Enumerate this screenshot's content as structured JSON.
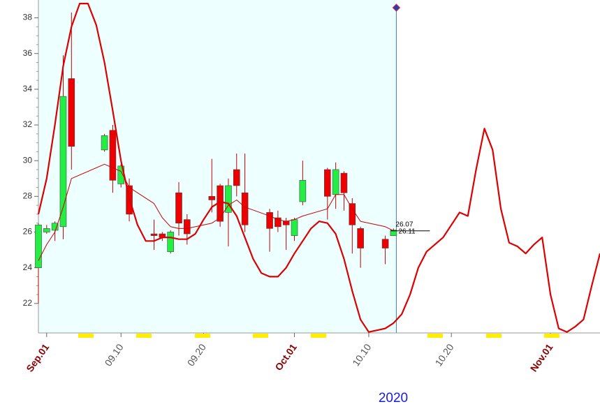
{
  "chart_data": {
    "type": "candlestick",
    "x_label": "2020",
    "xlim": [
      "2020-08-31",
      "2020-11-07"
    ],
    "ylim": [
      20.35,
      39.0
    ],
    "yticks": [
      22,
      24,
      26,
      28,
      30,
      32,
      34,
      36,
      38
    ],
    "xticks": [
      {
        "value": "2020-09-01",
        "label": "Sep.01"
      },
      {
        "value": "2020-09-10",
        "label": "09.10"
      },
      {
        "value": "2020-09-20",
        "label": "09.20"
      },
      {
        "value": "2020-10-01",
        "label": "Oct.01"
      },
      {
        "value": "2020-10-10",
        "label": "10.10"
      },
      {
        "value": "2020-10-20",
        "label": "10.20"
      },
      {
        "value": "2020-11-01",
        "label": "Nov.01"
      }
    ],
    "up_color": "#22ee44",
    "down_color": "#ee0000",
    "candles": {
      "x": [
        "2020-08-31",
        "2020-09-01",
        "2020-09-02",
        "2020-09-03",
        "2020-09-04",
        "2020-09-08",
        "2020-09-09",
        "2020-09-10",
        "2020-09-11",
        "2020-09-14",
        "2020-09-15",
        "2020-09-16",
        "2020-09-17",
        "2020-09-18",
        "2020-09-21",
        "2020-09-22",
        "2020-09-23",
        "2020-09-24",
        "2020-09-25",
        "2020-09-28",
        "2020-09-29",
        "2020-09-30",
        "2020-10-01",
        "2020-10-02",
        "2020-10-05",
        "2020-10-06",
        "2020-10-07",
        "2020-10-08",
        "2020-10-09",
        "2020-10-12",
        "2020-10-13"
      ],
      "open": [
        24.0,
        26.0,
        26.1,
        26.3,
        34.6,
        30.6,
        31.7,
        28.7,
        28.6,
        25.9,
        25.9,
        24.9,
        28.2,
        26.7,
        28.0,
        28.6,
        27.1,
        29.5,
        28.2,
        27.1,
        26.8,
        26.6,
        25.8,
        27.7,
        29.5,
        28.1,
        29.3,
        27.6,
        26.2,
        25.6,
        25.8
      ],
      "high": [
        26.5,
        26.4,
        26.6,
        35.9,
        38.3,
        31.5,
        32.0,
        29.8,
        29.0,
        26.7,
        26.0,
        26.1,
        28.8,
        27.0,
        30.1,
        28.7,
        29.0,
        30.4,
        30.4,
        27.3,
        27.2,
        26.8,
        26.8,
        30.0,
        29.6,
        29.9,
        29.4,
        27.9,
        26.3,
        25.8,
        26.2
      ],
      "low": [
        22.0,
        25.9,
        25.5,
        25.6,
        29.5,
        30.5,
        28.2,
        28.5,
        26.6,
        25.0,
        25.5,
        24.8,
        25.8,
        25.3,
        27.1,
        26.3,
        25.2,
        28.0,
        26.0,
        24.9,
        26.0,
        25.0,
        25.5,
        27.5,
        26.7,
        27.3,
        27.2,
        24.8,
        24.0,
        24.2,
        25.8
      ],
      "close": [
        26.4,
        26.2,
        26.5,
        33.6,
        30.8,
        31.4,
        28.9,
        29.7,
        27.0,
        25.8,
        25.7,
        26.0,
        26.5,
        25.9,
        27.8,
        26.6,
        28.6,
        28.6,
        26.4,
        26.2,
        26.3,
        26.4,
        26.7,
        28.9,
        28.0,
        29.5,
        28.2,
        26.4,
        25.1,
        25.1,
        26.11
      ]
    },
    "series": [
      {
        "color": "#cc0000",
        "x": [
          "2020-08-31",
          "2020-09-01",
          "2020-09-02",
          "2020-09-03",
          "2020-09-04",
          "2020-09-08",
          "2020-09-09",
          "2020-09-10",
          "2020-09-11",
          "2020-09-14",
          "2020-09-15",
          "2020-09-16",
          "2020-09-17",
          "2020-09-18",
          "2020-09-21",
          "2020-09-22",
          "2020-09-23",
          "2020-09-24",
          "2020-09-25",
          "2020-09-28",
          "2020-09-29",
          "2020-09-30",
          "2020-10-01",
          "2020-10-02",
          "2020-10-05",
          "2020-10-06",
          "2020-10-07",
          "2020-10-08",
          "2020-10-09",
          "2020-10-12",
          "2020-10-13"
        ],
        "values": [
          24.4,
          25.3,
          26.0,
          27.4,
          29.0,
          29.8,
          29.6,
          29.4,
          28.5,
          27.6,
          26.8,
          26.3,
          26.2,
          26.2,
          26.5,
          26.8,
          27.5,
          27.8,
          27.4,
          26.9,
          26.7,
          26.6,
          26.7,
          26.9,
          27.3,
          28.1,
          28.1,
          27.3,
          26.6,
          26.3,
          26.07
        ]
      },
      {
        "color": "#dd0000",
        "x": [
          "2020-08-31",
          "2020-09-01",
          "2020-09-02",
          "2020-09-03",
          "2020-09-04",
          "2020-09-05",
          "2020-09-06",
          "2020-09-07",
          "2020-09-08",
          "2020-09-09",
          "2020-09-10",
          "2020-09-11",
          "2020-09-12",
          "2020-09-13",
          "2020-09-14",
          "2020-09-15",
          "2020-09-16",
          "2020-09-17",
          "2020-09-18",
          "2020-09-19",
          "2020-09-20",
          "2020-09-21",
          "2020-09-22",
          "2020-09-23",
          "2020-09-24",
          "2020-09-25",
          "2020-09-26",
          "2020-09-27",
          "2020-09-28",
          "2020-09-29",
          "2020-09-30",
          "2020-10-01",
          "2020-10-02",
          "2020-10-03",
          "2020-10-04",
          "2020-10-05",
          "2020-10-06",
          "2020-10-07",
          "2020-10-08",
          "2020-10-09",
          "2020-10-10",
          "2020-10-11",
          "2020-10-12",
          "2020-10-13",
          "2020-10-14",
          "2020-10-15",
          "2020-10-16",
          "2020-10-17",
          "2020-10-18",
          "2020-10-19",
          "2020-10-20",
          "2020-10-21",
          "2020-10-22",
          "2020-10-23",
          "2020-10-24",
          "2020-10-25",
          "2020-10-26",
          "2020-10-27",
          "2020-10-28",
          "2020-10-29",
          "2020-10-30",
          "2020-10-31",
          "2020-11-01",
          "2020-11-02",
          "2020-11-03",
          "2020-11-04",
          "2020-11-05",
          "2020-11-06",
          "2020-11-07"
        ],
        "values": [
          27.0,
          29.0,
          32.0,
          35.3,
          37.5,
          38.8,
          38.8,
          37.6,
          35.5,
          32.8,
          30.0,
          27.9,
          26.4,
          25.5,
          25.5,
          25.7,
          25.7,
          25.6,
          25.6,
          25.9,
          26.7,
          27.4,
          27.7,
          27.6,
          26.9,
          25.7,
          24.5,
          23.7,
          23.5,
          23.5,
          24.0,
          24.8,
          25.5,
          26.2,
          26.6,
          26.5,
          25.9,
          24.5,
          22.7,
          21.1,
          20.4,
          20.5,
          20.6,
          20.9,
          21.4,
          22.5,
          24.0,
          24.9,
          25.3,
          25.7,
          26.4,
          27.1,
          26.9,
          29.5,
          31.8,
          30.6,
          27.3,
          25.4,
          25.2,
          24.8,
          25.3,
          25.7,
          22.5,
          20.6,
          20.4,
          20.7,
          21.1,
          23.0,
          24.8
        ]
      }
    ]
  }
}
